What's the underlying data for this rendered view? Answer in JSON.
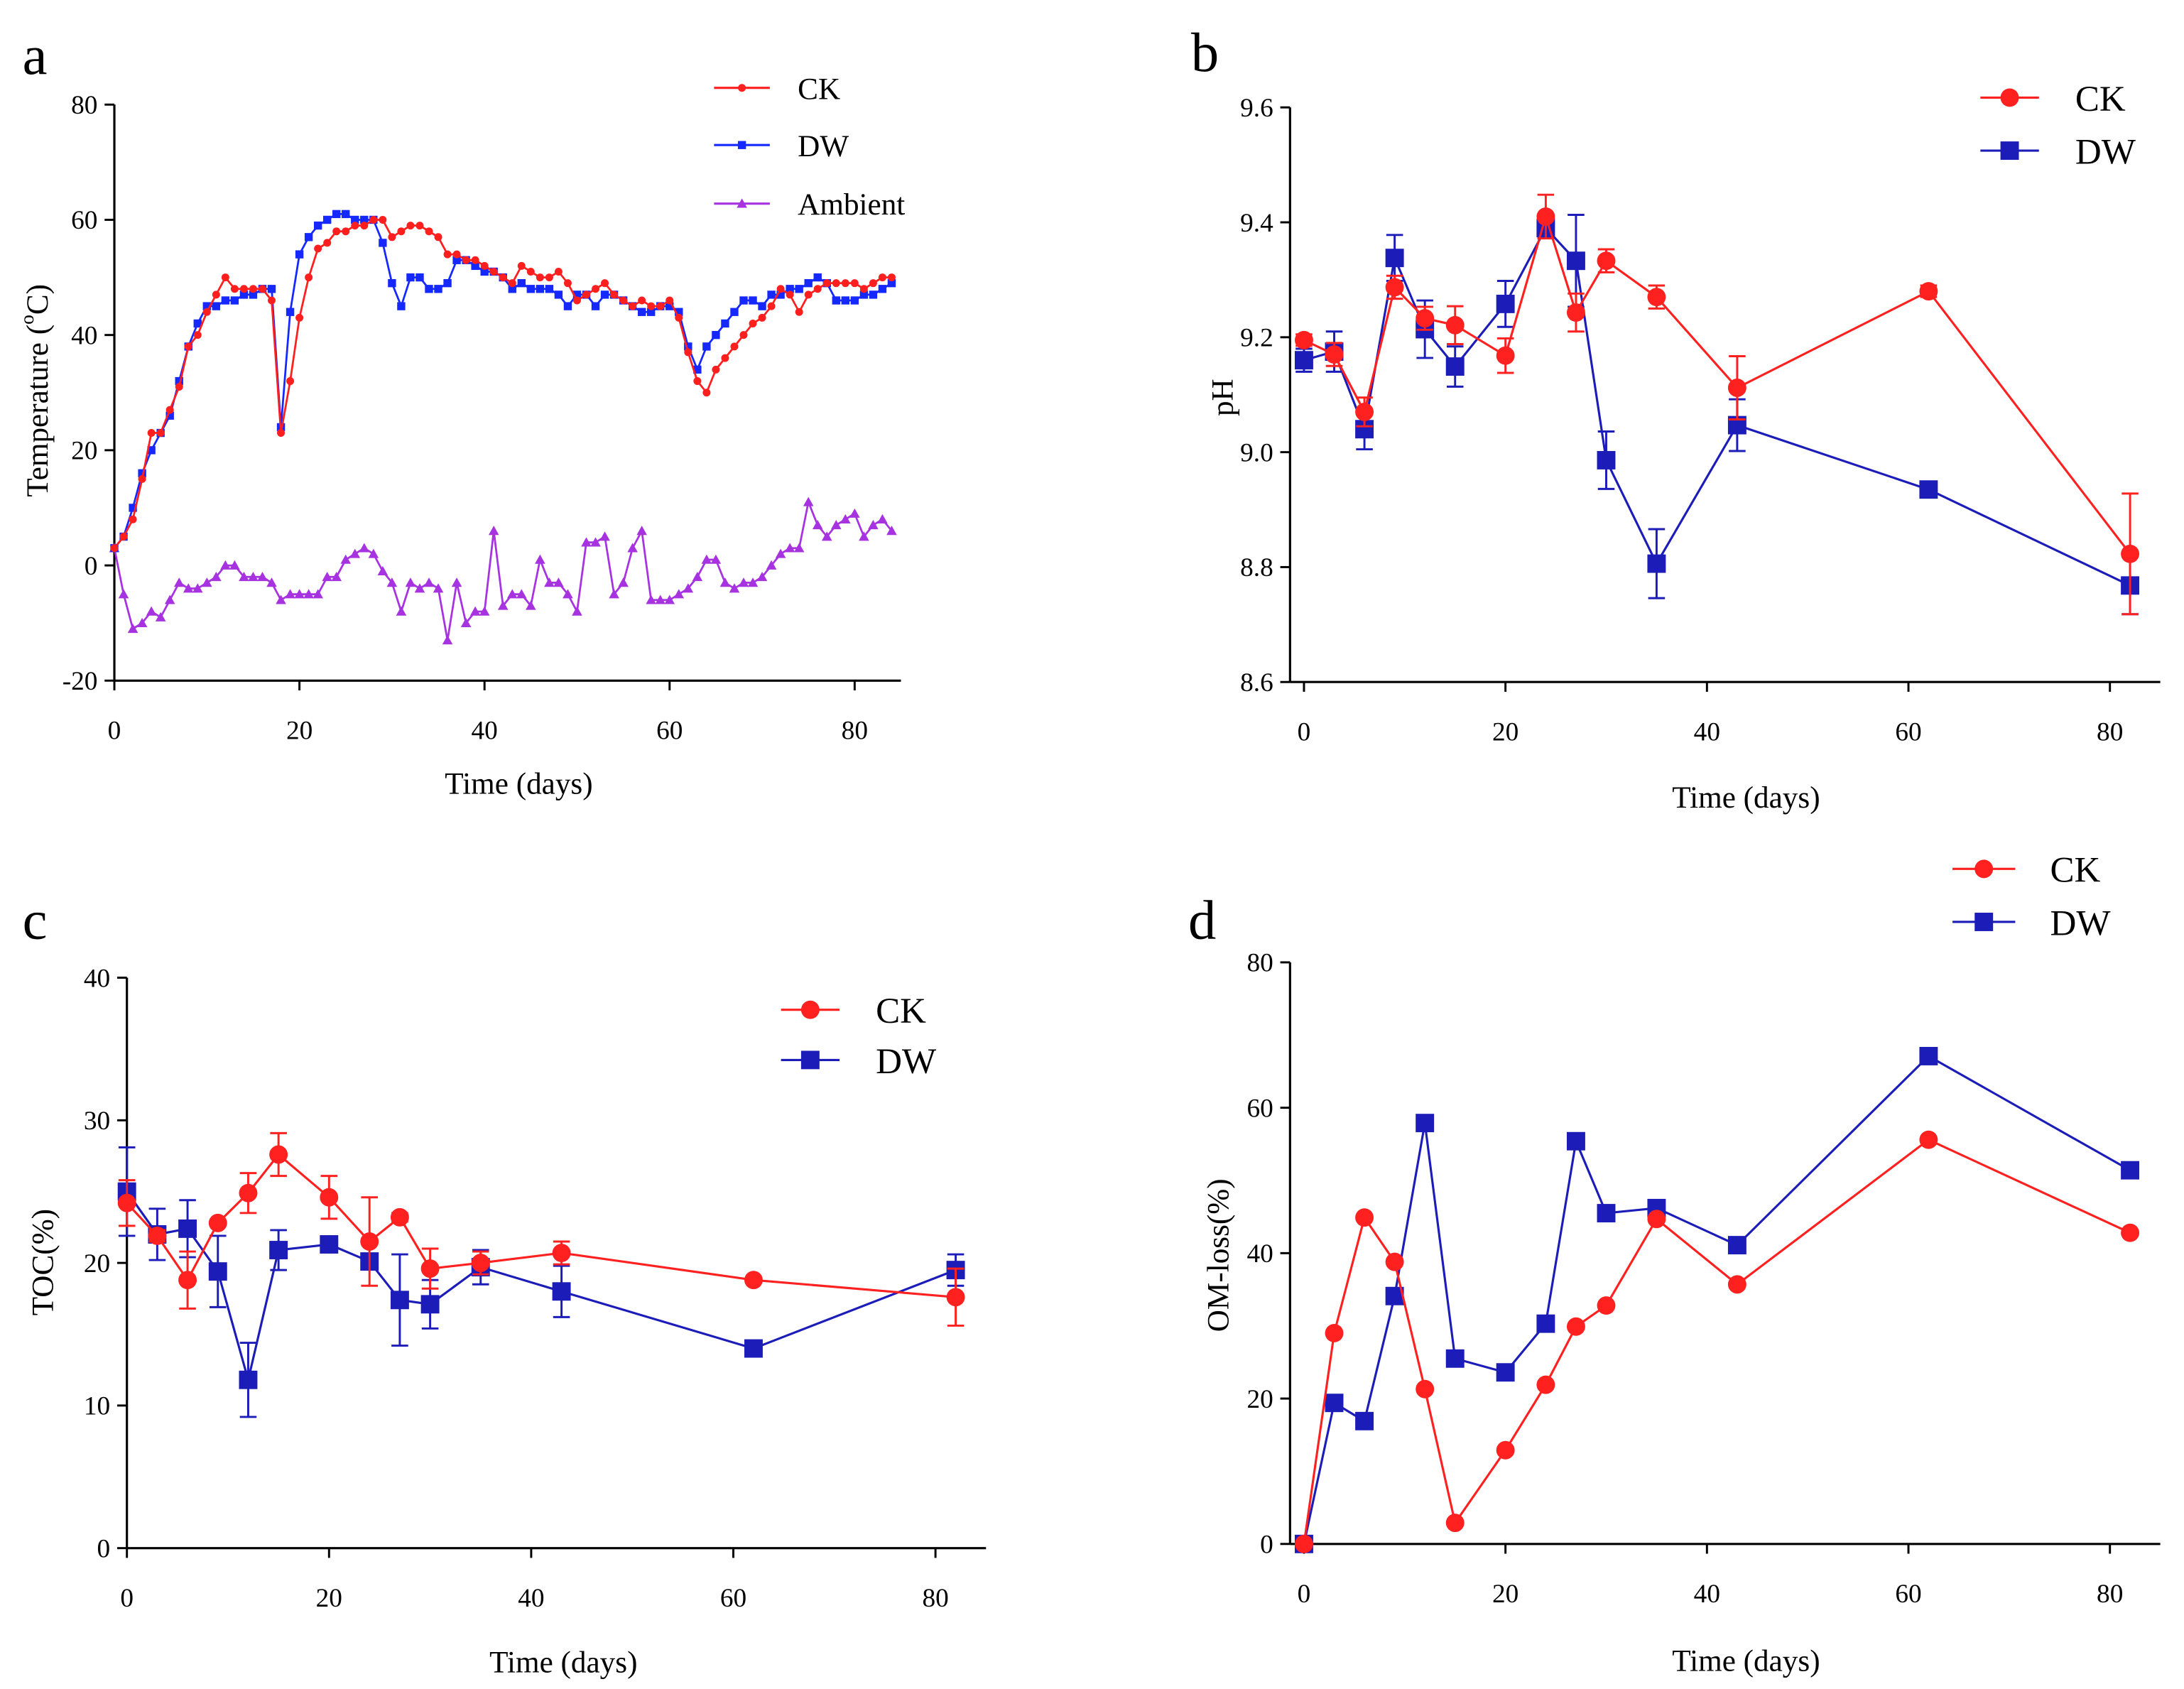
{
  "chart_data": [
    {
      "panel": "a",
      "type": "line",
      "xlabel": "Time (days)",
      "ylabel": {
        "prefix": "Temperature (",
        "sup": "o",
        "suffix": "C)"
      },
      "xlim": [
        0,
        85
      ],
      "ylim": [
        -20,
        80
      ],
      "xticks": [
        "0",
        "20",
        "40",
        "60",
        "80"
      ],
      "yticks": [
        "-20",
        "0",
        "20",
        "40",
        "60",
        "80"
      ],
      "legend_position": "top-right",
      "x": [
        0,
        1,
        2,
        3,
        4,
        5,
        6,
        7,
        8,
        9,
        10,
        11,
        12,
        13,
        14,
        15,
        16,
        17,
        18,
        19,
        20,
        21,
        22,
        23,
        24,
        25,
        26,
        27,
        28,
        29,
        30,
        31,
        32,
        33,
        34,
        35,
        36,
        37,
        38,
        39,
        40,
        41,
        42,
        43,
        44,
        45,
        46,
        47,
        48,
        49,
        50,
        51,
        52,
        53,
        54,
        55,
        56,
        57,
        58,
        59,
        60,
        61,
        62,
        63,
        64,
        65,
        66,
        67,
        68,
        69,
        70,
        71,
        72,
        73,
        74,
        75,
        76,
        77,
        78,
        79,
        80,
        81,
        82,
        83,
        84
      ],
      "series": [
        {
          "name": "CK",
          "color": "#ff1f1f",
          "marker": "circle",
          "values": [
            3,
            5,
            8,
            15,
            23,
            23,
            27,
            31,
            38,
            40,
            44,
            47,
            50,
            48,
            48,
            48,
            48,
            46,
            23,
            32,
            43,
            50,
            55,
            56,
            58,
            58,
            59,
            59,
            60,
            60,
            57,
            58,
            59,
            59,
            58,
            57,
            54,
            54,
            53,
            53,
            52,
            51,
            50,
            49,
            52,
            51,
            50,
            50,
            51,
            49,
            46,
            47,
            48,
            49,
            47,
            46,
            45,
            46,
            45,
            45,
            46,
            43,
            37,
            32,
            30,
            34,
            36,
            38,
            40,
            42,
            43,
            45,
            48,
            47,
            44,
            47,
            48,
            49,
            49,
            49,
            49,
            48,
            49,
            50,
            50
          ]
        },
        {
          "name": "DW",
          "color": "#1428ff",
          "marker": "square",
          "values": [
            3,
            5,
            10,
            16,
            20,
            23,
            26,
            32,
            38,
            42,
            45,
            45,
            46,
            46,
            47,
            47,
            48,
            48,
            24,
            44,
            54,
            57,
            59,
            60,
            61,
            61,
            60,
            60,
            60,
            56,
            49,
            45,
            50,
            50,
            48,
            48,
            49,
            53,
            53,
            52,
            51,
            51,
            50,
            48,
            49,
            48,
            48,
            48,
            47,
            45,
            47,
            47,
            45,
            47,
            47,
            46,
            45,
            44,
            44,
            45,
            45,
            44,
            38,
            34,
            38,
            40,
            42,
            44,
            46,
            46,
            45,
            47,
            47,
            48,
            48,
            49,
            50,
            49,
            46,
            46,
            46,
            47,
            47,
            48,
            49
          ]
        },
        {
          "name": "Ambient",
          "color": "#a632e0",
          "marker": "triangle",
          "values": [
            3,
            -5,
            -11,
            -10,
            -8,
            -9,
            -6,
            -3,
            -4,
            -4,
            -3,
            -2,
            0,
            0,
            -2,
            -2,
            -2,
            -3,
            -6,
            -5,
            -5,
            -5,
            -5,
            -2,
            -2,
            1,
            2,
            3,
            2,
            -1,
            -3,
            -8,
            -3,
            -4,
            -3,
            -4,
            -13,
            -3,
            -10,
            -8,
            -8,
            6,
            -7,
            -5,
            -5,
            -7,
            1,
            -3,
            -3,
            -5,
            -8,
            4,
            4,
            5,
            -5,
            -3,
            3,
            6,
            -6,
            -6,
            -6,
            -5,
            -4,
            -2,
            1,
            1,
            -3,
            -4,
            -3,
            -3,
            -2,
            0,
            2,
            3,
            3,
            11,
            7,
            5,
            7,
            8,
            9,
            5,
            7,
            8,
            6
          ]
        }
      ]
    },
    {
      "panel": "b",
      "type": "line",
      "xlabel": "Time (days)",
      "ylabel": "pH",
      "xlim": [
        0,
        85
      ],
      "ylim": [
        8.6,
        9.6
      ],
      "xticks": [
        "0",
        "20",
        "40",
        "60",
        "80"
      ],
      "yticks": [
        "8.6",
        "8.8",
        "9.0",
        "9.2",
        "9.4",
        "9.6"
      ],
      "legend_position": "top-right",
      "x": [
        0,
        3,
        6,
        9,
        12,
        15,
        20,
        24,
        27,
        30,
        35,
        43,
        62,
        82
      ],
      "series": [
        {
          "name": "CK",
          "color": "#ff2020",
          "marker": "circle",
          "values": [
            9.195,
            9.17,
            9.07,
            9.287,
            9.233,
            9.221,
            9.168,
            9.41,
            9.243,
            9.333,
            9.27,
            9.112,
            9.28,
            8.823
          ],
          "error": [
            0.01,
            0.02,
            0.025,
            0.02,
            0.02,
            0.033,
            0.03,
            0.038,
            0.033,
            0.02,
            0.02,
            0.055,
            0.01,
            0.105
          ]
        },
        {
          "name": "DW",
          "color": "#1c1cb8",
          "marker": "square",
          "values": [
            9.16,
            9.175,
            9.04,
            9.338,
            9.214,
            9.149,
            9.258,
            9.39,
            9.333,
            8.986,
            8.806,
            9.047,
            8.935,
            8.768
          ],
          "error": [
            0.02,
            0.035,
            0.035,
            0.04,
            0.05,
            0.035,
            0.04,
            0.015,
            0.08,
            0.05,
            0.06,
            0.045,
            0.01,
            0.05
          ]
        }
      ]
    },
    {
      "panel": "c",
      "type": "line",
      "xlabel": "Time (days)",
      "ylabel": "TOC(%)",
      "xlim": [
        0,
        85
      ],
      "ylim": [
        0,
        40
      ],
      "xticks": [
        "0",
        "20",
        "40",
        "60",
        "80"
      ],
      "yticks": [
        "0",
        "10",
        "20",
        "30",
        "40"
      ],
      "legend_position": "top-right",
      "x": [
        0,
        3,
        6,
        9,
        12,
        15,
        20,
        24,
        27,
        30,
        35,
        43,
        62,
        82
      ],
      "series": [
        {
          "name": "CK",
          "color": "#ff2020",
          "marker": "circle",
          "values": [
            24.2,
            21.9,
            18.8,
            22.8,
            24.9,
            27.6,
            24.6,
            21.5,
            23.2,
            19.6,
            20.0,
            20.7,
            18.8,
            17.6
          ],
          "error": [
            1.6,
            0.4,
            2.0,
            0.2,
            1.4,
            1.5,
            1.5,
            3.1,
            0.3,
            1.4,
            0.8,
            0.8,
            0.2,
            2.0
          ]
        },
        {
          "name": "DW",
          "color": "#1c1cb8",
          "marker": "square",
          "values": [
            25.0,
            22.0,
            22.4,
            19.4,
            11.8,
            20.9,
            21.3,
            20.1,
            17.4,
            17.1,
            19.7,
            18.0,
            14.0,
            19.5
          ],
          "error": [
            3.1,
            1.8,
            2.0,
            2.5,
            2.6,
            1.4,
            0.5,
            0.3,
            3.2,
            1.7,
            1.2,
            1.8,
            0.3,
            1.1
          ]
        }
      ]
    },
    {
      "panel": "d",
      "type": "line",
      "xlabel": "Time (days)",
      "ylabel": "OM-loss(%)",
      "xlim": [
        0,
        85
      ],
      "ylim": [
        0,
        80
      ],
      "xticks": [
        "0",
        "20",
        "40",
        "60",
        "80"
      ],
      "yticks": [
        "0",
        "20",
        "40",
        "60",
        "80"
      ],
      "legend_position": "top-right",
      "x": [
        0,
        3,
        6,
        9,
        12,
        15,
        20,
        24,
        27,
        30,
        35,
        43,
        62,
        82
      ],
      "series": [
        {
          "name": "CK",
          "color": "#ff2020",
          "marker": "circle",
          "values": [
            0,
            29.0,
            44.9,
            38.8,
            21.3,
            2.9,
            12.9,
            21.9,
            29.9,
            32.8,
            44.7,
            35.7,
            55.6,
            42.8
          ]
        },
        {
          "name": "DW",
          "color": "#1c1cb8",
          "marker": "square",
          "values": [
            0,
            19.4,
            16.9,
            34.1,
            57.9,
            25.5,
            23.6,
            30.3,
            55.4,
            45.5,
            46.2,
            41.1,
            67.1,
            51.4
          ]
        }
      ]
    }
  ]
}
